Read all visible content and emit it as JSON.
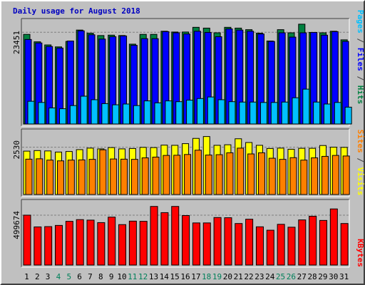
{
  "chart_data": [
    {
      "type": "bar",
      "title": "Daily usage for August 2018",
      "categories": [
        "1",
        "2",
        "3",
        "4",
        "5",
        "6",
        "7",
        "8",
        "9",
        "10",
        "11",
        "12",
        "13",
        "14",
        "15",
        "16",
        "17",
        "18",
        "19",
        "20",
        "21",
        "22",
        "23",
        "24",
        "25",
        "26",
        "27",
        "28",
        "29",
        "30",
        "31"
      ],
      "weekend_days": [
        "4",
        "5",
        "11",
        "12",
        "18",
        "19",
        "25",
        "26"
      ],
      "ytick_label": "23451",
      "ytick_value": 23451,
      "ylim": [
        0,
        26400
      ],
      "legend": [
        {
          "text": "Pages",
          "color": "#00c0ff"
        },
        {
          "text": " / ",
          "color": "#404040"
        },
        {
          "text": "Files",
          "color": "#0000ff"
        },
        {
          "text": " / ",
          "color": "#404040"
        },
        {
          "text": "Hits",
          "color": "#008040"
        }
      ],
      "series": [
        {
          "name": "Hits",
          "color": "#008040",
          "values": [
            22900,
            21000,
            20200,
            19700,
            21100,
            24000,
            23200,
            22600,
            22700,
            22600,
            20400,
            22900,
            22900,
            23700,
            23500,
            23500,
            24700,
            24500,
            23300,
            24700,
            24500,
            24100,
            23200,
            21200,
            24100,
            23300,
            25500,
            23400,
            23300,
            23700,
            21500
          ]
        },
        {
          "name": "Files",
          "color": "#0000ff",
          "values": [
            21600,
            20700,
            19800,
            19400,
            21200,
            23800,
            22800,
            21700,
            22300,
            22500,
            20100,
            21800,
            21800,
            23600,
            23300,
            23000,
            23700,
            23400,
            22300,
            24300,
            24000,
            23700,
            23000,
            21100,
            23300,
            22200,
            23300,
            23400,
            22700,
            23600,
            21100
          ]
        },
        {
          "name": "Pages",
          "color": "#00c0ff",
          "values": [
            5800,
            5500,
            4100,
            3900,
            4700,
            7100,
            6200,
            5200,
            4900,
            5100,
            4700,
            5900,
            5400,
            5900,
            5700,
            6100,
            6500,
            6900,
            6200,
            5700,
            5600,
            5600,
            5500,
            5500,
            5600,
            6700,
            8900,
            5600,
            5100,
            5500,
            4300
          ]
        }
      ]
    },
    {
      "type": "bar",
      "categories": [
        "1",
        "2",
        "3",
        "4",
        "5",
        "6",
        "7",
        "8",
        "9",
        "10",
        "11",
        "12",
        "13",
        "14",
        "15",
        "16",
        "17",
        "18",
        "19",
        "20",
        "21",
        "22",
        "23",
        "24",
        "25",
        "26",
        "27",
        "28",
        "29",
        "30",
        "31"
      ],
      "ytick_label": "2530",
      "ytick_value": 2530,
      "ylim": [
        0,
        3390
      ],
      "legend": [
        {
          "text": "Sites",
          "color": "#ff8000"
        },
        {
          "text": " / ",
          "color": "#404040"
        },
        {
          "text": "Visits",
          "color": "#ffff00"
        }
      ],
      "series": [
        {
          "name": "Visits",
          "color": "#ffff00",
          "values": [
            2320,
            2350,
            2330,
            2270,
            2300,
            2400,
            2480,
            2440,
            2510,
            2440,
            2460,
            2520,
            2510,
            2640,
            2630,
            2720,
            3000,
            3100,
            2630,
            2660,
            2980,
            2780,
            2630,
            2460,
            2480,
            2420,
            2470,
            2470,
            2620,
            2530,
            2520
          ]
        },
        {
          "name": "Sites",
          "color": "#ff8000",
          "values": [
            1890,
            1910,
            1840,
            1800,
            1840,
            1850,
            1880,
            2390,
            1900,
            1890,
            1880,
            1960,
            2000,
            2090,
            2100,
            2140,
            2370,
            2110,
            2130,
            2230,
            2480,
            2170,
            2230,
            1940,
            1880,
            1970,
            1840,
            1960,
            2040,
            2090,
            2060
          ]
        }
      ]
    },
    {
      "type": "bar",
      "categories": [
        "1",
        "2",
        "3",
        "4",
        "5",
        "6",
        "7",
        "8",
        "9",
        "10",
        "11",
        "12",
        "13",
        "14",
        "15",
        "16",
        "17",
        "18",
        "19",
        "20",
        "21",
        "22",
        "23",
        "24",
        "25",
        "26",
        "27",
        "28",
        "29",
        "30",
        "31"
      ],
      "ytick_label": "499674",
      "ytick_value": 499674,
      "ylim": [
        0,
        635000
      ],
      "legend": [
        {
          "text": "KBytes",
          "color": "#ff0000"
        }
      ],
      "series": [
        {
          "name": "KBytes",
          "color": "#ff0000",
          "values": [
            499674,
            382000,
            385000,
            397000,
            438000,
            455000,
            450000,
            425000,
            480000,
            405000,
            440000,
            438000,
            587000,
            525000,
            587000,
            496000,
            422000,
            422000,
            476000,
            474000,
            416000,
            459000,
            383000,
            349000,
            408000,
            379000,
            452000,
            489000,
            447000,
            562000,
            416000
          ]
        }
      ]
    }
  ]
}
